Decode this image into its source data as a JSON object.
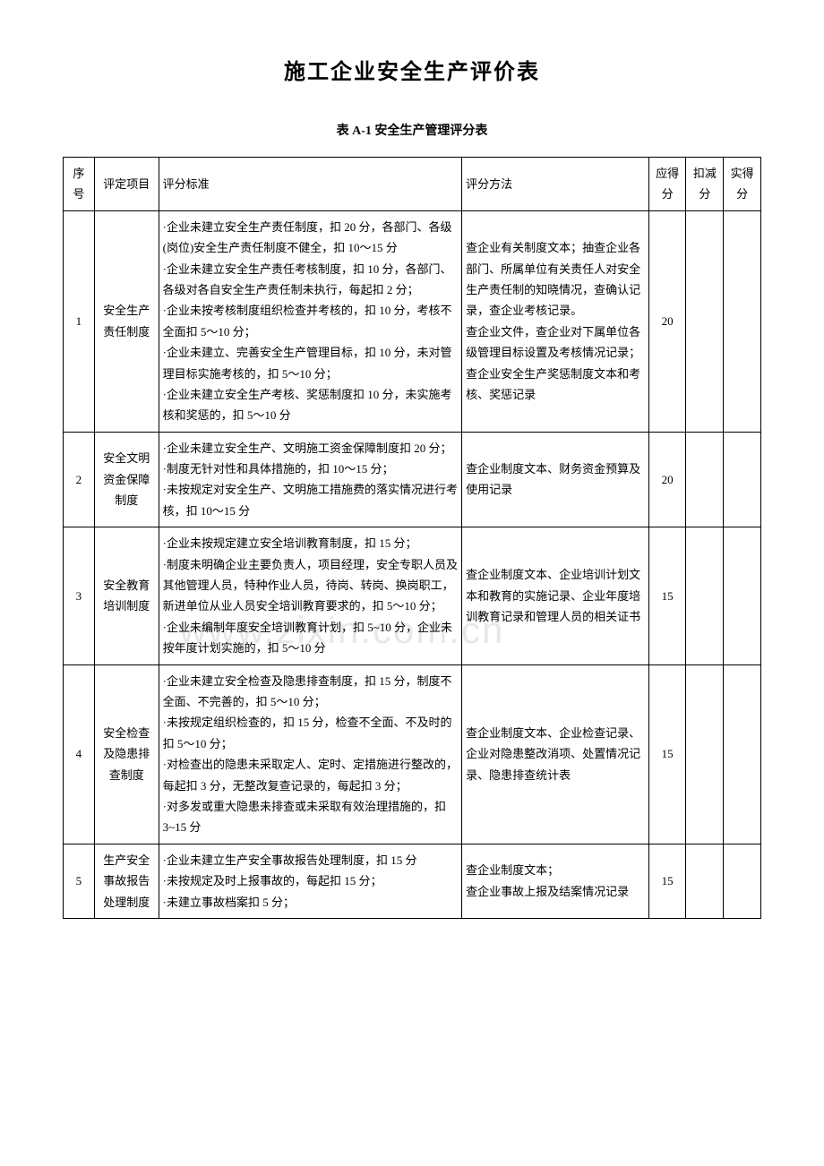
{
  "document": {
    "title": "施工企业安全生产评价表",
    "table_caption": "表 A-1    安全生产管理评分表",
    "watermark": "www.zixin.com.cn"
  },
  "table": {
    "headers": {
      "seq": "序号",
      "item": "评定项目",
      "criteria": "评分标准",
      "method": "评分方法",
      "score_due": "应得分",
      "score_deduct": "扣减分",
      "score_actual": "实得分"
    },
    "rows": [
      {
        "seq": "1",
        "item": "安全生产责任制度",
        "criteria": "·企业未建立安全生产责任制度，扣 20 分，各部门、各级(岗位)安全生产责任制度不健全，扣 10～15 分\n·企业未建立安全生产责任考核制度，扣 10 分，各部门、各级对各自安全生产责任制未执行，每起扣 2 分；\n·企业未按考核制度组织检查并考核的，扣 10 分，考核不全面扣 5～10 分；\n·企业未建立、完善安全生产管理目标，扣 10 分，未对管理目标实施考核的，扣 5～10 分；\n·企业未建立安全生产考核、奖惩制度扣 10 分，未实施考核和奖惩的，扣 5～10 分",
        "method": "查企业有关制度文本；抽查企业各部门、所属单位有关责任人对安全生产责任制的知晓情况，查确认记录，查企业考核记录。\n查企业文件，查企业对下属单位各级管理目标设置及考核情况记录；查企业安全生产奖惩制度文本和考核、奖惩记录",
        "score_due": "20",
        "score_deduct": "",
        "score_actual": ""
      },
      {
        "seq": "2",
        "item": "安全文明资金保障制度",
        "criteria": "·企业未建立安全生产、文明施工资金保障制度扣 20 分；\n·制度无针对性和具体措施的，扣 10～15 分；\n·未按规定对安全生产、文明施工措施费的落实情况进行考核，扣 10～15 分",
        "method": "查企业制度文本、财务资金预算及使用记录",
        "score_due": "20",
        "score_deduct": "",
        "score_actual": ""
      },
      {
        "seq": "3",
        "item": "安全教育培训制度",
        "criteria": "·企业未按规定建立安全培训教育制度，扣 15 分；\n·制度未明确企业主要负责人，项目经理，安全专职人员及其他管理人员，特种作业人员，待岗、转岗、换岗职工，新进单位从业人员安全培训教育要求的，扣 5～10 分；\n·企业未编制年度安全培训教育计划，扣 5~10 分，企业未按年度计划实施的，扣 5～10 分",
        "method": "查企业制度文本、企业培训计划文本和教育的实施记录、企业年度培训教育记录和管理人员的相关证书",
        "score_due": "15",
        "score_deduct": "",
        "score_actual": ""
      },
      {
        "seq": "4",
        "item": "安全检查及隐患排查制度",
        "criteria": "·企业未建立安全检查及隐患排查制度，扣 15 分，制度不全面、不完善的，扣 5～10 分；\n·未按规定组织检查的，扣 15 分，检查不全面、不及时的扣 5～10 分；\n·对检查出的隐患未采取定人、定时、定措施进行整改的，每起扣 3 分，无整改复查记录的，每起扣 3 分；\n·对多发或重大隐患未排查或未采取有效治理措施的，扣 3~15 分",
        "method": "查企业制度文本、企业检查记录、企业对隐患整改消项、处置情况记录、隐患排查统计表",
        "score_due": "15",
        "score_deduct": "",
        "score_actual": ""
      },
      {
        "seq": "5",
        "item": "生产安全事故报告处理制度",
        "criteria": "·企业未建立生产安全事故报告处理制度，扣 15 分\n·未按规定及时上报事故的，每起扣 15 分；\n·未建立事故档案扣 5 分；",
        "method": "查企业制度文本；\n查企业事故上报及结案情况记录",
        "score_due": "15",
        "score_deduct": "",
        "score_actual": ""
      }
    ]
  },
  "styling": {
    "background_color": "#ffffff",
    "border_color": "#000000",
    "text_color": "#000000",
    "watermark_color": "#e8e8e8",
    "title_fontsize": 24,
    "caption_fontsize": 14,
    "body_fontsize": 13,
    "line_height": 1.8,
    "column_widths": {
      "seq": 30,
      "item": 62,
      "criteria": 292,
      "method": 180,
      "score": 36
    }
  }
}
